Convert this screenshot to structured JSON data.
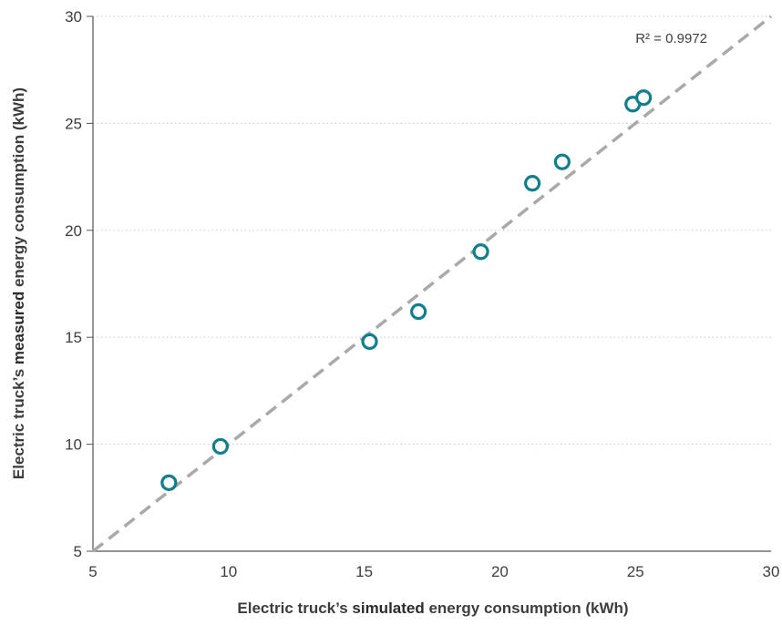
{
  "chart_data": {
    "type": "scatter",
    "xlabel_prefix": "Electric truck’s ",
    "xlabel_emphasis": "simulated",
    "xlabel_suffix": " energy consumption (kWh)",
    "ylabel_prefix": "Electric truck’s ",
    "ylabel_emphasis": "measured",
    "ylabel_suffix": " energy consumption (kWh)",
    "xlim": [
      5,
      30
    ],
    "ylim": [
      5,
      30
    ],
    "xticks": [
      5,
      10,
      15,
      20,
      25,
      30
    ],
    "yticks": [
      5,
      10,
      15,
      20,
      25,
      30
    ],
    "grid": "horizontal-dotted",
    "annotation": "R² = 0.9972",
    "fit_line": {
      "from": [
        5,
        5
      ],
      "to": [
        30,
        30
      ],
      "style": "dashed"
    },
    "points": [
      {
        "x": 7.8,
        "y": 8.2
      },
      {
        "x": 9.7,
        "y": 9.9
      },
      {
        "x": 15.2,
        "y": 14.8
      },
      {
        "x": 17.0,
        "y": 16.2
      },
      {
        "x": 19.3,
        "y": 19.0
      },
      {
        "x": 21.2,
        "y": 22.2
      },
      {
        "x": 22.3,
        "y": 23.2
      },
      {
        "x": 24.9,
        "y": 25.9
      },
      {
        "x": 25.3,
        "y": 26.2
      }
    ],
    "colors": {
      "marker": "#0f7f8c",
      "fit_line": "#a9a9a9",
      "grid": "#c8c8c8",
      "axis": "#555555"
    }
  }
}
